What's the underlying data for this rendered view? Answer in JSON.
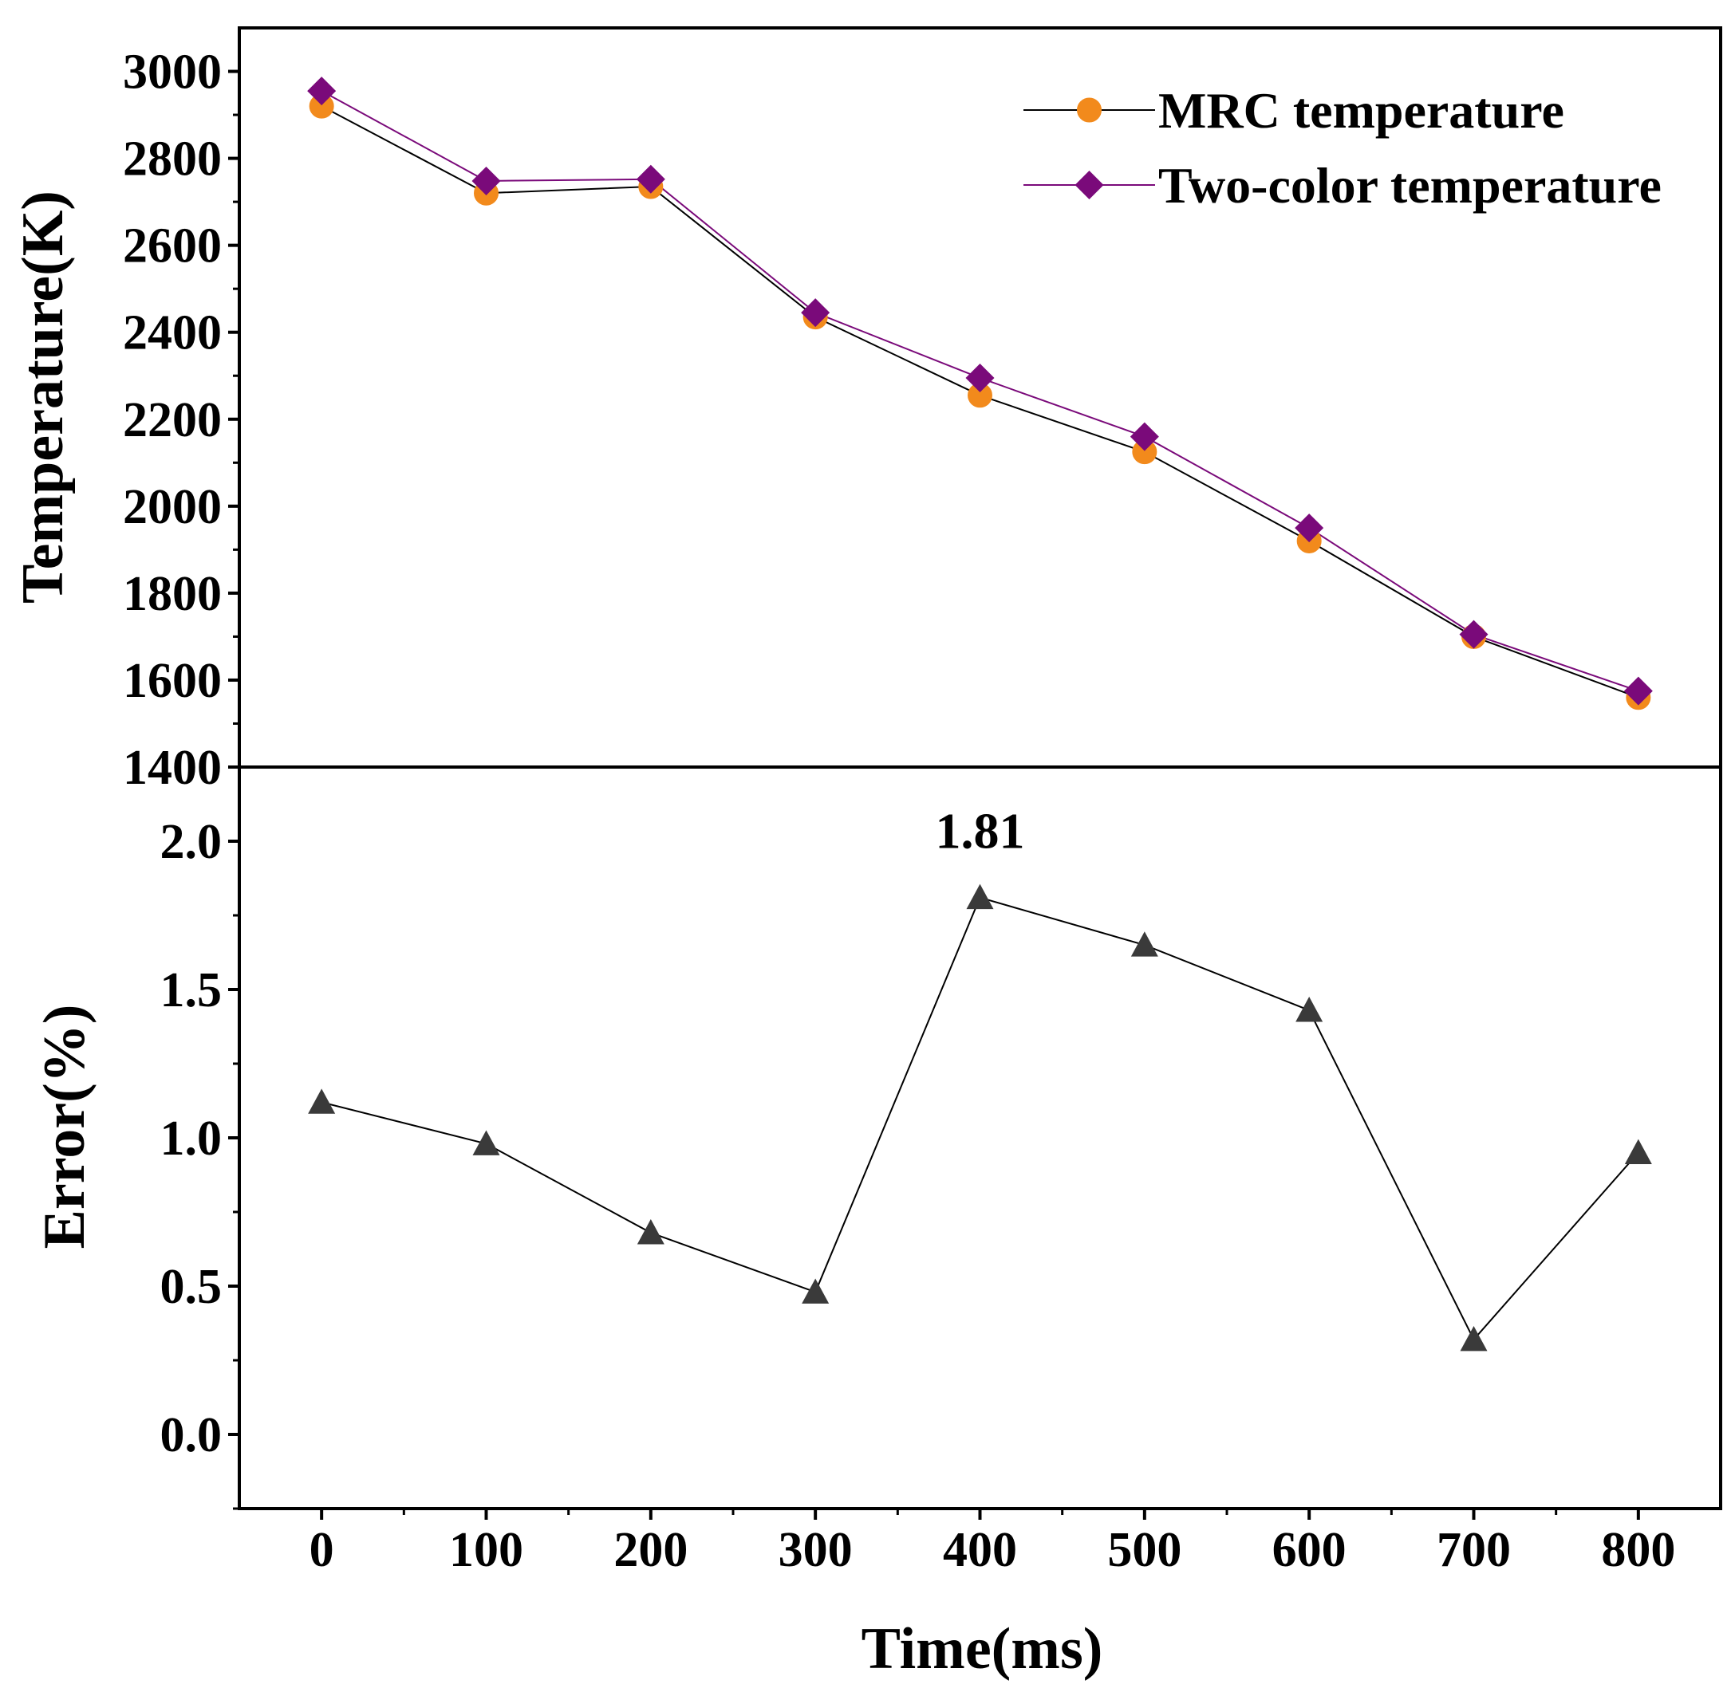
{
  "chart_data": [
    {
      "type": "line",
      "panel": "top",
      "xlabel": "Time(ms)",
      "ylabel": "Temperature(K)",
      "x": [
        0,
        100,
        200,
        300,
        400,
        500,
        600,
        700,
        800
      ],
      "xlim": [
        -50,
        850
      ],
      "xticks": [
        0,
        100,
        200,
        300,
        400,
        500,
        600,
        700,
        800
      ],
      "ylim": [
        1400,
        3100
      ],
      "yticks": [
        1400,
        1600,
        1800,
        2000,
        2200,
        2400,
        2600,
        2800,
        3000
      ],
      "legend_position": "top-right",
      "series": [
        {
          "name": "MRC temperature",
          "marker": "circle",
          "color": "#f28a1c",
          "line_color": "#000000",
          "values": [
            2920,
            2720,
            2735,
            2435,
            2255,
            2125,
            1920,
            1700,
            1560
          ]
        },
        {
          "name": "Two-color temperature",
          "marker": "diamond",
          "color": "#7a0a7a",
          "line_color": "#7a0a7a",
          "values": [
            2955,
            2748,
            2752,
            2445,
            2295,
            2160,
            1950,
            1705,
            1575
          ]
        }
      ]
    },
    {
      "type": "line",
      "panel": "bottom",
      "xlabel": "Time(ms)",
      "ylabel": "Error(%)",
      "x": [
        0,
        100,
        200,
        300,
        400,
        500,
        600,
        700,
        800
      ],
      "xlim": [
        -50,
        850
      ],
      "xticks": [
        0,
        100,
        200,
        300,
        400,
        500,
        600,
        700,
        800
      ],
      "ylim": [
        -0.25,
        2.25
      ],
      "yticks": [
        "0.0",
        "0.5",
        "1.0",
        "1.5",
        "2.0"
      ],
      "series": [
        {
          "name": "Error",
          "marker": "triangle",
          "color": "#3a3a3a",
          "line_color": "#000000",
          "values": [
            1.12,
            0.98,
            0.68,
            0.48,
            1.81,
            1.65,
            1.43,
            0.32,
            0.95
          ]
        }
      ],
      "annotations": [
        {
          "text": "1.81",
          "x": 400,
          "y": 1.81
        }
      ]
    }
  ]
}
